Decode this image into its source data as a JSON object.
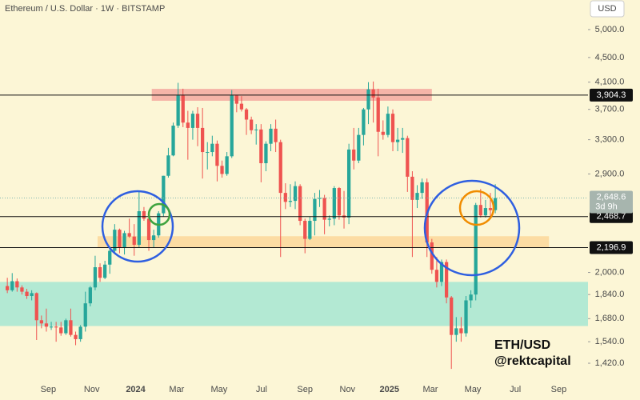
{
  "chart_data": {
    "type": "candlestick",
    "title": "Ethereum / U.S. Dollar · 1W · BITSTAMP",
    "currency": "USD",
    "log_scale": true,
    "grid": false,
    "up_color": "#26a69a",
    "down_color": "#ef5350",
    "xlim": [
      -1.5,
      119
    ],
    "ylim": [
      1341,
      5590
    ],
    "yticks": [
      {
        "value": 5000,
        "label": "5,000.0"
      },
      {
        "value": 4500,
        "label": "4,500.0"
      },
      {
        "value": 4100,
        "label": "4,100.0"
      },
      {
        "value": 3700,
        "label": "3,700.0"
      },
      {
        "value": 3300,
        "label": "3,300.0"
      },
      {
        "value": 2900,
        "label": "2,900.0"
      },
      {
        "value": 2000,
        "label": "2,000.0"
      },
      {
        "value": 1840,
        "label": "1,840.0"
      },
      {
        "value": 1680,
        "label": "1,680.0"
      },
      {
        "value": 1540,
        "label": "1,540.0"
      },
      {
        "value": 1420,
        "label": "1,420.0"
      }
    ],
    "xticks": [
      {
        "value": 8.4,
        "label": "Sep"
      },
      {
        "value": 17.3,
        "label": "Nov"
      },
      {
        "value": 26.3,
        "label": "2024"
      },
      {
        "value": 34.7,
        "label": "Mar"
      },
      {
        "value": 43.4,
        "label": "May"
      },
      {
        "value": 52.1,
        "label": "Jul"
      },
      {
        "value": 61.0,
        "label": "Sep"
      },
      {
        "value": 69.7,
        "label": "Nov"
      },
      {
        "value": 78.3,
        "label": "2025"
      },
      {
        "value": 86.7,
        "label": "Mar"
      },
      {
        "value": 95.4,
        "label": "May"
      },
      {
        "value": 104.1,
        "label": "Jul"
      },
      {
        "value": 113,
        "label": "Sep"
      }
    ],
    "open": [
      1900,
      1870,
      1935,
      1890,
      1860,
      1830,
      1850,
      1670,
      1650,
      1630,
      1630,
      1625,
      1590,
      1670,
      1580,
      1555,
      1630,
      1780,
      1890,
      2040,
      1960,
      2060,
      2170,
      2350,
      2200,
      2320,
      2290,
      2220,
      2520,
      2450,
      2260,
      2300,
      2500,
      2880,
      3110,
      3480,
      3900,
      3520,
      3450,
      3640,
      3450,
      3150,
      3150,
      3250,
      2990,
      2900,
      3100,
      3900,
      3780,
      3700,
      3560,
      3420,
      3430,
      3020,
      3250,
      3440,
      3270,
      2700,
      2610,
      2620,
      2770,
      2430,
      2270,
      2430,
      2640,
      2650,
      2440,
      2450,
      2750,
      2480,
      2460,
      3180,
      3050,
      3360,
      3700,
      3990,
      3870,
      3400,
      3360,
      3640,
      3270,
      3300,
      3320,
      2870,
      2630,
      2700,
      2810,
      2240,
      2020,
      1930,
      2080,
      1820,
      1580,
      1620,
      1590,
      1800,
      1840,
      2580,
      2480,
      2550,
      2530
    ],
    "high": [
      1960,
      1995,
      1955,
      1905,
      1880,
      1870,
      1855,
      1700,
      1745,
      1660,
      1660,
      1660,
      1680,
      1745,
      1600,
      1640,
      1860,
      1900,
      2130,
      2070,
      2090,
      2190,
      2400,
      2360,
      2340,
      2450,
      2400,
      2720,
      2560,
      2470,
      2350,
      2520,
      2880,
      3200,
      3520,
      4090,
      4000,
      3680,
      3680,
      3730,
      3720,
      3270,
      3350,
      3290,
      3050,
      3150,
      3980,
      3900,
      3890,
      3720,
      3600,
      3500,
      3500,
      3280,
      3500,
      3560,
      3300,
      2800,
      2790,
      2820,
      2790,
      2450,
      2470,
      2700,
      2730,
      2680,
      2480,
      2770,
      2760,
      2720,
      3250,
      3450,
      3450,
      3720,
      4100,
      4110,
      4000,
      3550,
      3740,
      3700,
      3450,
      3450,
      3350,
      2930,
      2780,
      2850,
      2850,
      2270,
      2120,
      2100,
      2100,
      1830,
      1690,
      1690,
      1830,
      1870,
      2600,
      2740,
      2630,
      2700,
      2790
    ],
    "low": [
      1850,
      1860,
      1860,
      1840,
      1810,
      1800,
      1550,
      1620,
      1600,
      1610,
      1540,
      1575,
      1580,
      1570,
      1520,
      1540,
      1600,
      1760,
      1870,
      1930,
      1950,
      1990,
      2160,
      2150,
      2140,
      2280,
      2130,
      2200,
      2430,
      2170,
      2200,
      2280,
      2470,
      2860,
      3100,
      3450,
      3460,
      3060,
      3300,
      3220,
      2850,
      2950,
      3100,
      2820,
      2860,
      2880,
      3080,
      3660,
      3670,
      3360,
      3370,
      3240,
      2810,
      2930,
      3160,
      3150,
      2120,
      2540,
      2560,
      2540,
      2390,
      2150,
      2260,
      2300,
      2560,
      2310,
      2380,
      2390,
      2440,
      2360,
      2400,
      2950,
      3020,
      3230,
      3500,
      3520,
      3100,
      3300,
      3330,
      3160,
      3160,
      3140,
      2710,
      2120,
      2550,
      2640,
      2120,
      1990,
      1890,
      1900,
      1780,
      1390,
      1540,
      1540,
      1570,
      1750,
      1800,
      2460,
      2460,
      2470,
      2500
    ],
    "close": [
      1870,
      1935,
      1890,
      1860,
      1830,
      1850,
      1670,
      1650,
      1630,
      1630,
      1625,
      1590,
      1670,
      1580,
      1555,
      1630,
      1780,
      1890,
      2040,
      1960,
      2060,
      2170,
      2350,
      2200,
      2320,
      2290,
      2220,
      2520,
      2450,
      2260,
      2300,
      2500,
      2880,
      3110,
      3480,
      3900,
      3520,
      3450,
      3640,
      3450,
      3150,
      3150,
      3250,
      2990,
      2900,
      3100,
      3900,
      3780,
      3700,
      3560,
      3420,
      3430,
      3020,
      3250,
      3440,
      3270,
      2700,
      2610,
      2620,
      2770,
      2430,
      2270,
      2430,
      2640,
      2650,
      2440,
      2450,
      2750,
      2480,
      2460,
      3180,
      3050,
      3360,
      3700,
      3990,
      3870,
      3400,
      3360,
      3640,
      3270,
      3300,
      3320,
      2870,
      2630,
      2700,
      2810,
      2240,
      2020,
      1930,
      2080,
      1820,
      1580,
      1620,
      1590,
      1800,
      1840,
      2580,
      2480,
      2550,
      2530,
      2648.6
    ],
    "zones": [
      {
        "low": 1634,
        "high": 1930,
        "start": -1.5,
        "end": 119,
        "color": "#a6e6d2"
      },
      {
        "low": 3822,
        "high": 3998,
        "start": 29.6,
        "end": 87.0,
        "color": "#f4a9a0"
      },
      {
        "low": 2197,
        "high": 2293,
        "start": 18.5,
        "end": 111,
        "color": "#fcd79a"
      }
    ],
    "levels": [
      {
        "value": 3904.3,
        "label": "3,904.3"
      },
      {
        "value": 2468.7,
        "label": "2,468.7"
      },
      {
        "value": 2196.9,
        "label": "2,196.9"
      }
    ],
    "current_price": {
      "value": 2648.6,
      "label": "2,648.6",
      "countdown": "3d 9h"
    },
    "annotations": [
      "ETH/USD",
      "@rektcapital"
    ]
  }
}
